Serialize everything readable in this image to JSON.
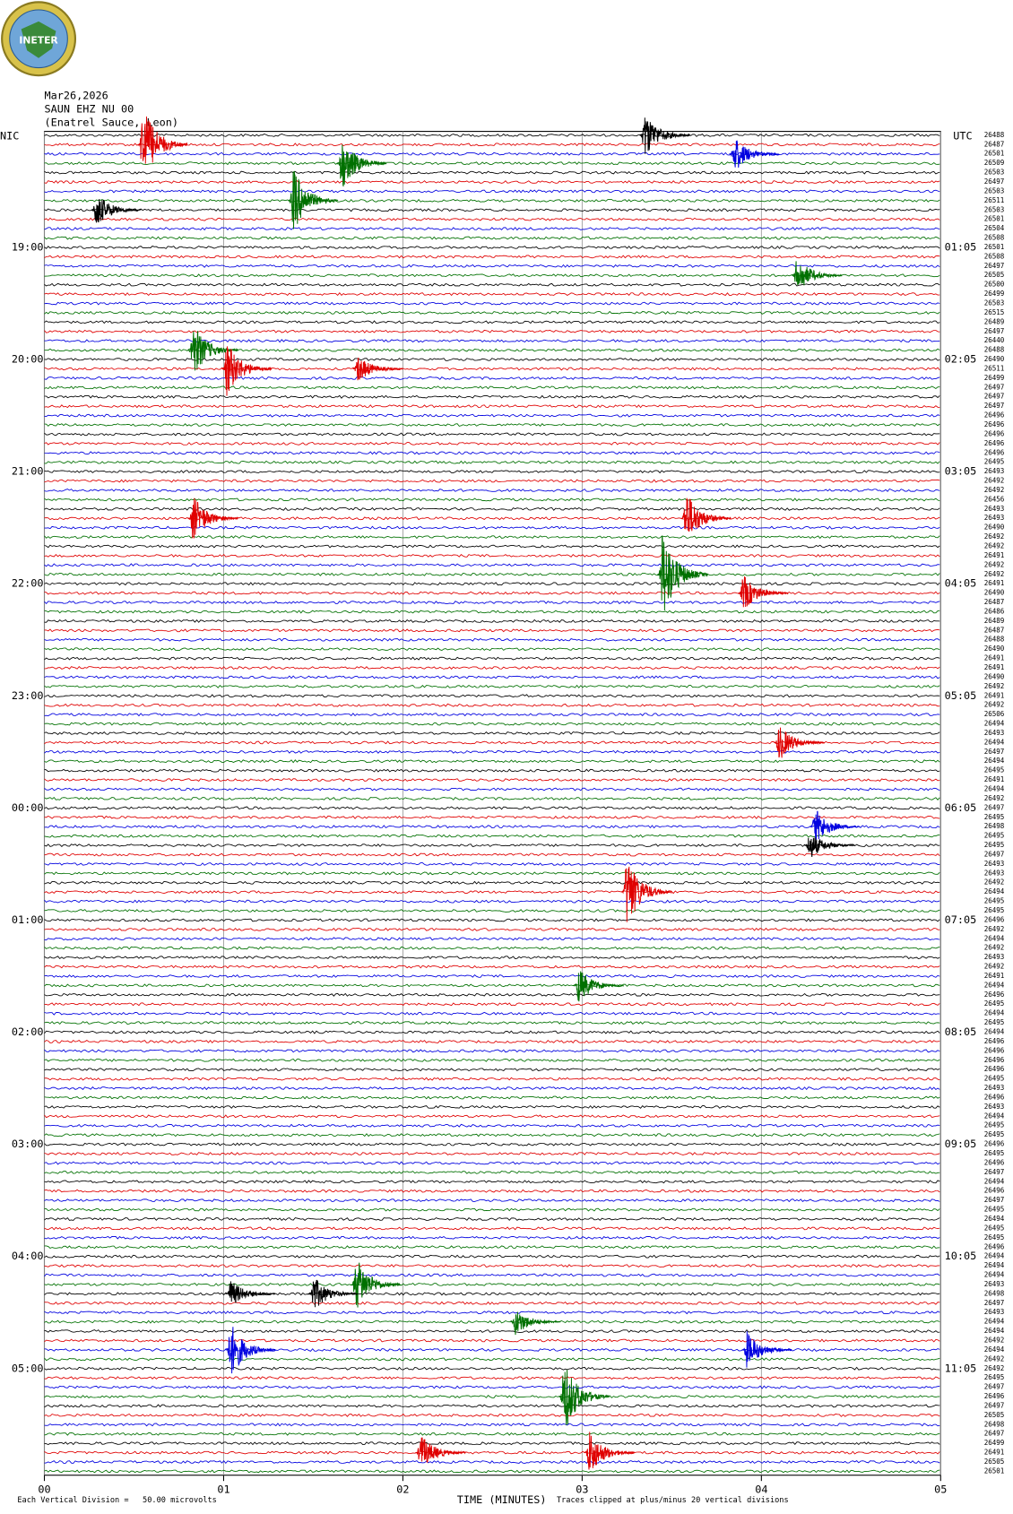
{
  "chart_data": {
    "type": "helicorder",
    "logo_text": "INETER",
    "date": "Mar26,2026",
    "station": "SAUN EHZ NU 00",
    "location": "(Enatrel Sauce, Leon)",
    "left_zone": "NIC",
    "right_zone": "UTC",
    "left_hours": [
      "19:00",
      "20:00",
      "21:00",
      "22:00",
      "23:00",
      "00:00",
      "01:00",
      "02:00",
      "03:00",
      "04:00",
      "05:00"
    ],
    "right_hours": [
      "01:05",
      "02:05",
      "03:05",
      "04:05",
      "05:05",
      "06:05",
      "07:05",
      "08:05",
      "09:05",
      "10:05",
      "11:05"
    ],
    "x_label": "TIME (MINUTES)",
    "scale_note": "Each Vertical Division =   50.00 microvolts",
    "clip_note": "Traces clipped at plus/minus 20 vertical divisions",
    "xlim": [
      0,
      5
    ],
    "xticks": [
      {
        "value": 0,
        "label": "00"
      },
      {
        "value": 1,
        "label": "01"
      },
      {
        "value": 2,
        "label": "02"
      },
      {
        "value": 3,
        "label": "03"
      },
      {
        "value": 4,
        "label": "04"
      },
      {
        "value": 5,
        "label": "05"
      }
    ],
    "grid": true,
    "trace_colors": [
      "#000000",
      "#e00000",
      "#0000e0",
      "#007000"
    ],
    "trace_offsets": [
      26488,
      26487,
      26501,
      26509,
      26503,
      26497,
      26503,
      26511,
      26503,
      26501,
      26504,
      26508,
      26501,
      26508,
      26497,
      26505,
      26500,
      26499,
      26503,
      26515,
      26489,
      26497,
      26440,
      26488,
      26490,
      26511,
      26499,
      26497,
      26497,
      26497,
      26496,
      26496,
      26496,
      26496,
      26496,
      26495,
      26493,
      26492,
      26492,
      26456,
      26493,
      26493,
      26490,
      26492,
      26492,
      26491,
      26492,
      26492,
      26491,
      26490,
      26487,
      26486,
      26489,
      26487,
      26488,
      26490,
      26491,
      26491,
      26490,
      26492,
      26491,
      26492,
      26506,
      26494,
      26493,
      26494,
      26497,
      26494,
      26495,
      26491,
      26494,
      26492,
      26497,
      26495,
      26498,
      26495,
      26495,
      26497,
      26493,
      26493,
      26492,
      26494,
      26495,
      26495,
      26496,
      26492,
      26494,
      26492,
      26493,
      26492,
      26491,
      26494,
      26496,
      26495,
      26494,
      26495,
      26494,
      26496,
      26496,
      26496,
      26496,
      26495,
      26493,
      26496,
      26493,
      26494,
      26495,
      26495,
      26496,
      26495,
      26496,
      26497,
      26494,
      26496,
      26497,
      26495,
      26494,
      26495,
      26495,
      26496,
      26494,
      26494,
      26494,
      26493,
      26498,
      26497,
      26493,
      26494,
      26494,
      26492,
      26494,
      26492,
      26492,
      26495,
      26497,
      26496,
      26497,
      26505,
      26498,
      26497,
      26499,
      26491,
      26505,
      26501
    ],
    "events": [
      [
        1,
        0.55,
        4.5
      ],
      [
        3,
        1.66,
        3
      ],
      [
        2,
        3.85,
        2
      ],
      [
        7,
        1.39,
        3.5
      ],
      [
        8,
        0.29,
        2
      ],
      [
        0,
        3.35,
        2.5
      ],
      [
        15,
        4.2,
        2
      ],
      [
        23,
        0.83,
        3
      ],
      [
        25,
        1.02,
        3
      ],
      [
        25,
        1.75,
        1.5
      ],
      [
        41,
        0.83,
        2.5
      ],
      [
        41,
        3.58,
        3
      ],
      [
        47,
        3.45,
        5
      ],
      [
        49,
        3.9,
        2
      ],
      [
        65,
        4.1,
        2
      ],
      [
        74,
        4.3,
        2
      ],
      [
        76,
        4.27,
        1.5
      ],
      [
        81,
        3.25,
        4
      ],
      [
        91,
        2.98,
        2
      ],
      [
        123,
        1.74,
        3
      ],
      [
        124,
        1.04,
        1.5
      ],
      [
        124,
        1.5,
        2
      ],
      [
        127,
        2.63,
        1.5
      ],
      [
        130,
        1.04,
        3
      ],
      [
        130,
        3.92,
        2
      ],
      [
        135,
        2.9,
        4
      ],
      [
        141,
        2.1,
        2
      ],
      [
        141,
        3.04,
        2.5
      ]
    ]
  }
}
